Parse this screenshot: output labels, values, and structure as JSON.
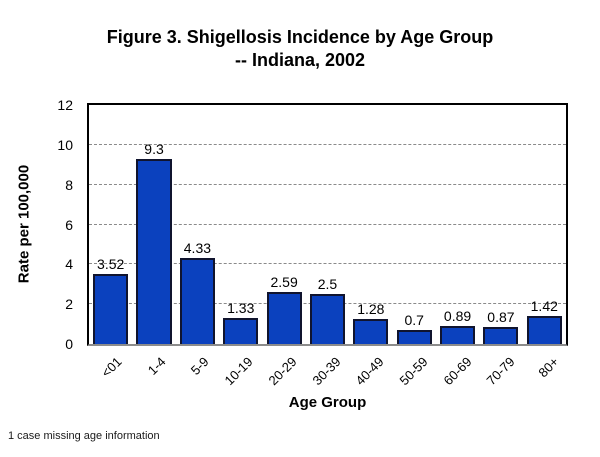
{
  "figure": {
    "title_line1": "Figure 3. Shigellosis Incidence by Age Group",
    "title_line2": "-- Indiana, 2002",
    "footnote": "1 case missing age information"
  },
  "chart_data": {
    "type": "bar",
    "title": "Figure 3. Shigellosis Incidence by Age Group -- Indiana, 2002",
    "categories": [
      "<01",
      "1-4",
      "5-9",
      "10-19",
      "20-29",
      "30-39",
      "40-49",
      "50-59",
      "60-69",
      "70-79",
      "80+"
    ],
    "values": [
      3.52,
      9.3,
      4.33,
      1.33,
      2.59,
      2.5,
      1.28,
      0.7,
      0.89,
      0.87,
      1.42
    ],
    "value_labels": [
      "3.52",
      "9.3",
      "4.33",
      "1.33",
      "2.59",
      "2.5",
      "1.28",
      "0.7",
      "0.89",
      "0.87",
      "1.42"
    ],
    "xlabel": "Age Group",
    "ylabel": "Rate per 100,000",
    "ylim": [
      0,
      12
    ],
    "yticks": [
      0,
      2,
      4,
      6,
      8,
      10,
      12
    ],
    "gridlines_at": [
      2,
      4,
      6,
      8,
      10
    ],
    "grid": "horizontal-dashed",
    "legend": "none",
    "bar_color": "#0b41be",
    "bar_border_color": "#10142e",
    "gridline_color": "#8a8a8a",
    "frame_color": "#000000",
    "baseline_color": "#8c8c8c"
  }
}
